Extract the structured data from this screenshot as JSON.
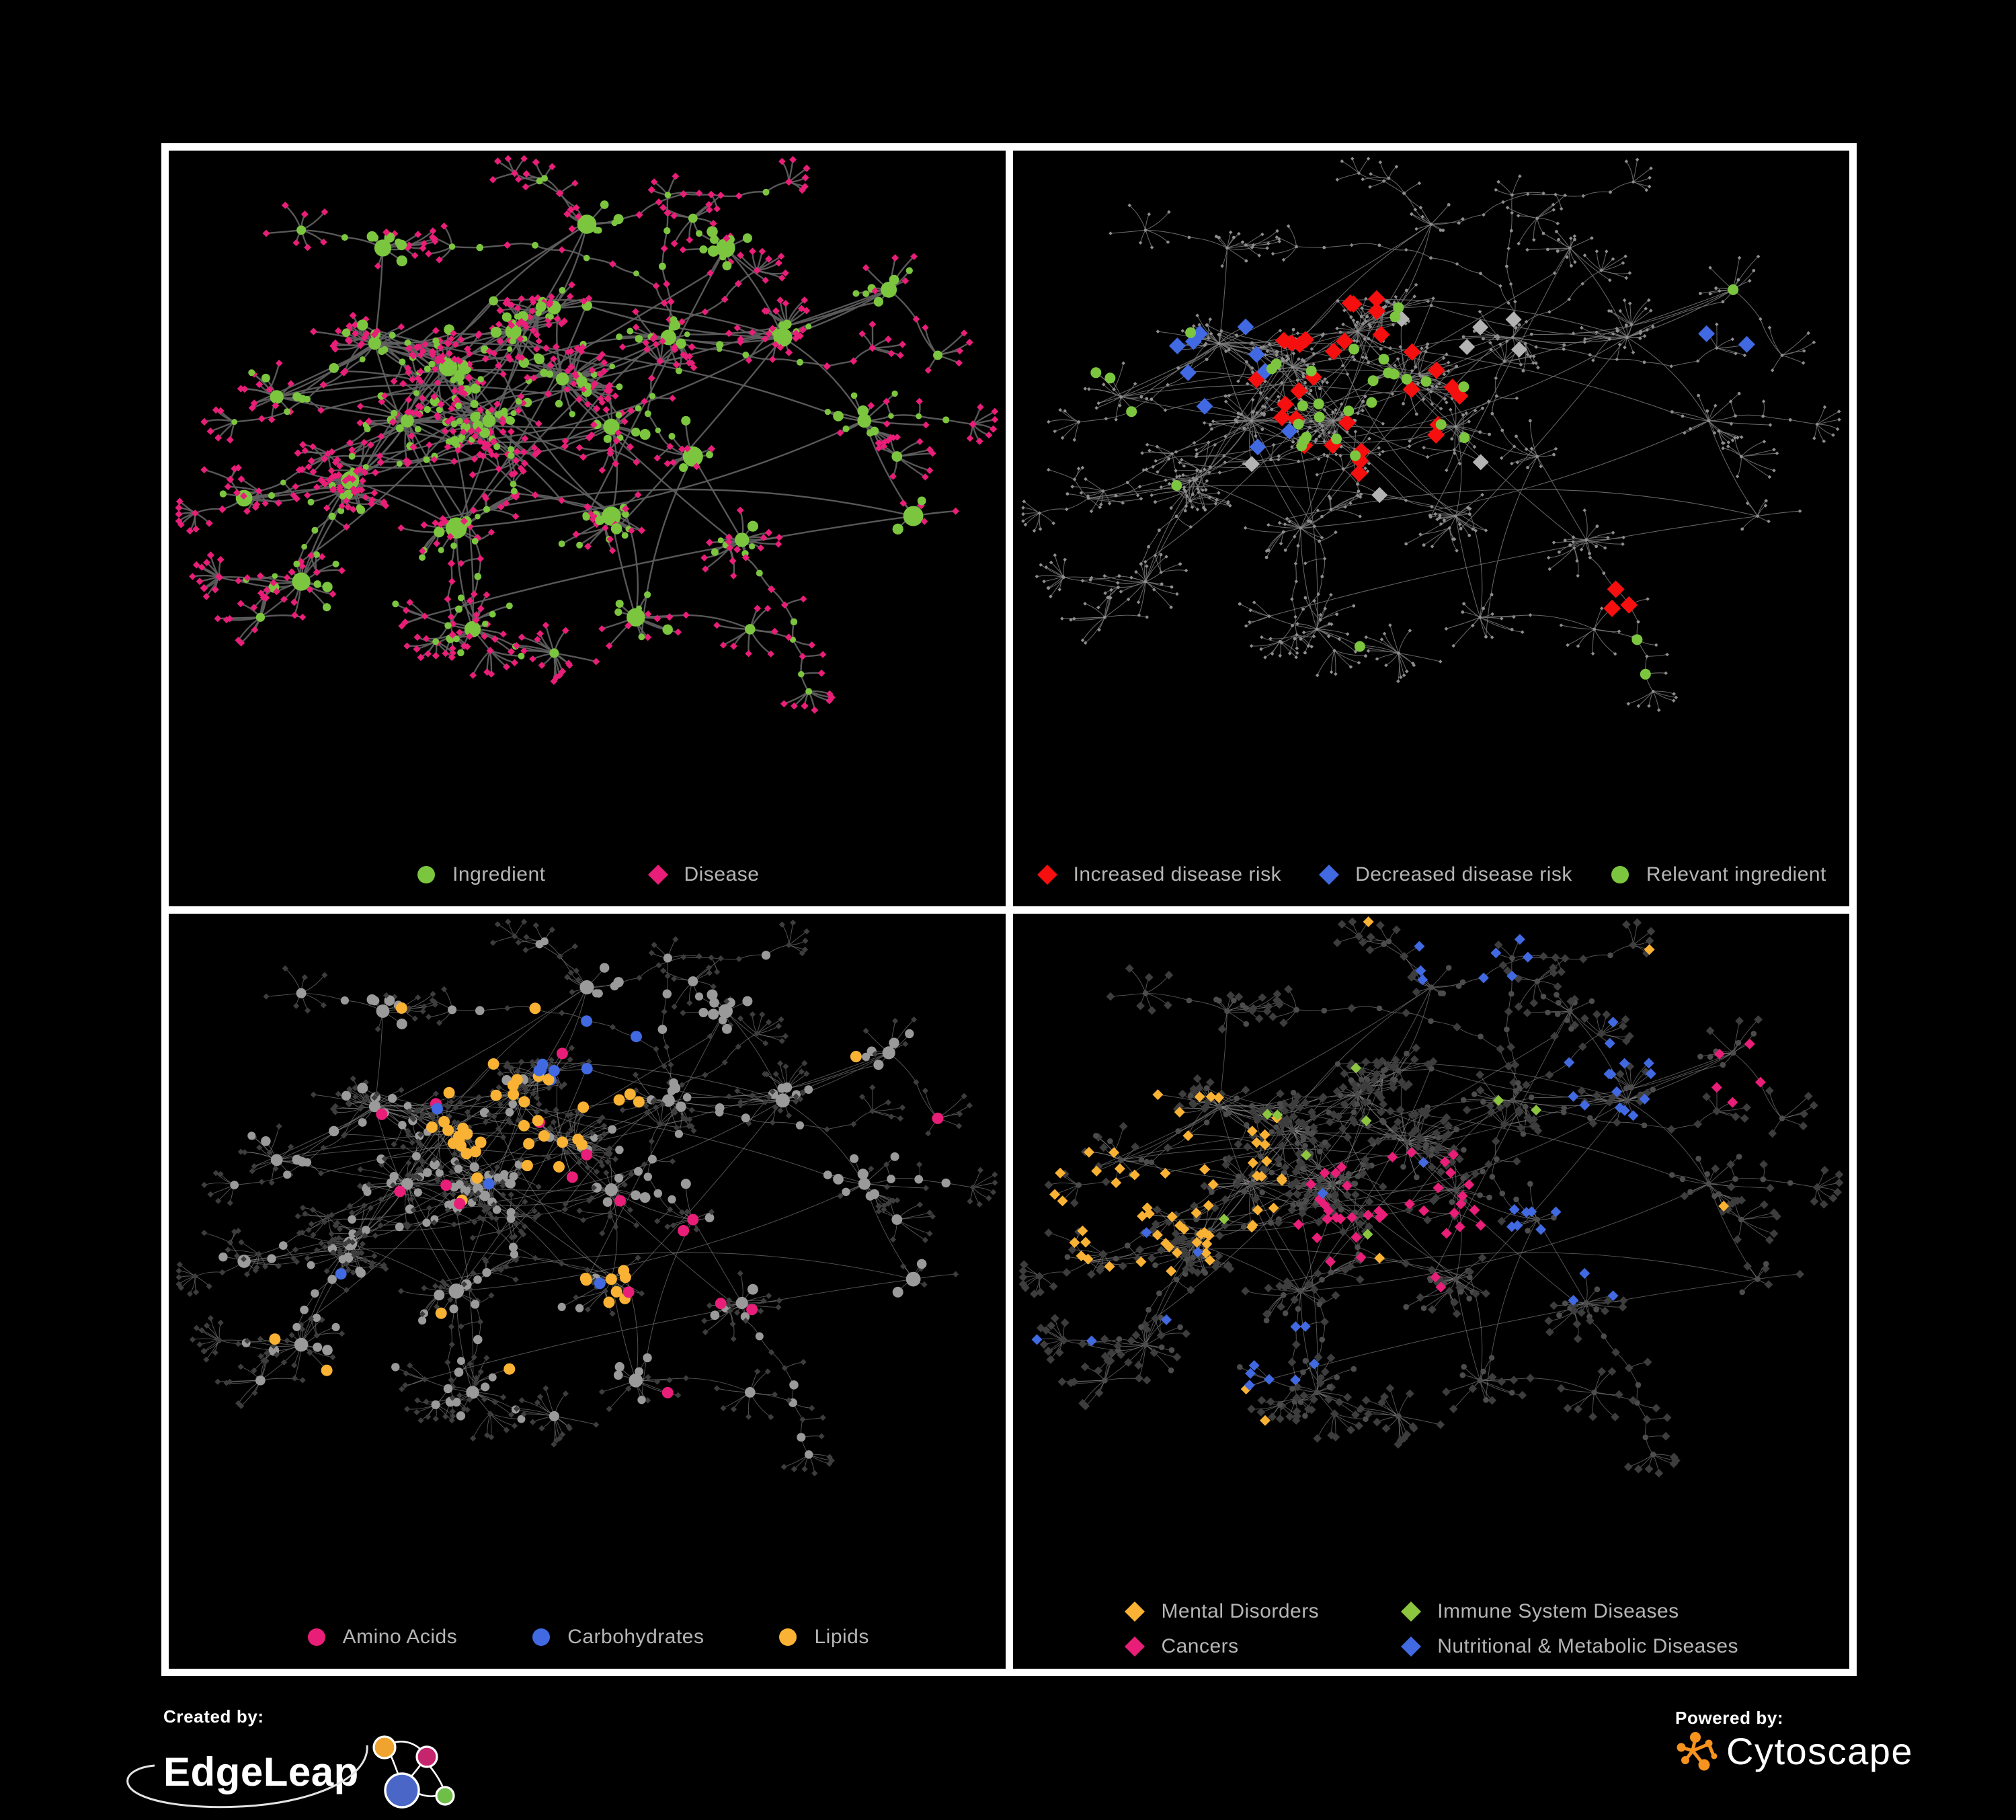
{
  "figure": {
    "background": "#000000",
    "frame_color": "#ffffff",
    "legend_text_color": "#b5b5b5"
  },
  "panels": [
    {
      "name": "ingredient-disease-network",
      "legend_layout": "row-wide",
      "legend": [
        {
          "shape": "circle",
          "color": "#7cc63f",
          "label": "Ingredient"
        },
        {
          "shape": "diamond",
          "color": "#e81e78",
          "label": "Disease"
        }
      ]
    },
    {
      "name": "disease-risk-network",
      "legend_layout": "row-tight",
      "legend": [
        {
          "shape": "diamond",
          "color": "#f50f0f",
          "label": "Increased disease risk"
        },
        {
          "shape": "diamond",
          "color": "#4169e1",
          "label": "Decreased disease risk"
        },
        {
          "shape": "circle",
          "color": "#7cc63f",
          "label": "Relevant ingredient"
        }
      ]
    },
    {
      "name": "nutrient-class-network",
      "legend_layout": "row-mid",
      "legend": [
        {
          "shape": "circle",
          "color": "#e81e78",
          "label": "Amino Acids"
        },
        {
          "shape": "circle",
          "color": "#4169e1",
          "label": "Carbohydrates"
        },
        {
          "shape": "circle",
          "color": "#f9b233",
          "label": "Lipids"
        }
      ]
    },
    {
      "name": "disease-class-network",
      "legend_layout": "two-col",
      "legend": [
        {
          "shape": "diamond",
          "color": "#f9b233",
          "label": "Mental Disorders"
        },
        {
          "shape": "diamond",
          "color": "#8cc63f",
          "label": "Immune System Diseases"
        },
        {
          "shape": "diamond",
          "color": "#e81e78",
          "label": "Cancers"
        },
        {
          "shape": "diamond",
          "color": "#4169e1",
          "label": "Nutritional & Metabolic Diseases"
        }
      ]
    }
  ],
  "network_style": {
    "ingredient_green": "#7cc63f",
    "disease_pink": "#e81e78",
    "risk_red": "#f50f0f",
    "risk_blue": "#4169e1",
    "risk_gray": "#b3b3b3",
    "lipid_orange": "#f9b233",
    "immune_green": "#8cc63f",
    "dim_gray_node": "#8e8e8e",
    "gray_circle": "#9a9a9a",
    "dark_diamond": "#3d3d3d",
    "dark_circle": "#4c4c4c",
    "edge_p1": "#606060",
    "edge_p2": "#787878",
    "edge_p3": "#8f8f8f",
    "edge_p4": "#8f8f8f",
    "seed": 13
  },
  "footer": {
    "created_by_label": "Created by:",
    "created_by_name": "EdgeLeap",
    "powered_by_label": "Powered by:",
    "powered_by_name": "Cytoscape",
    "edgeleap_logo_colors": {
      "orange": "#f0a32f",
      "magenta": "#c4256d",
      "blue": "#4a67c8",
      "green": "#6fbe47"
    },
    "cytoscape_orange": "#f6921e"
  }
}
